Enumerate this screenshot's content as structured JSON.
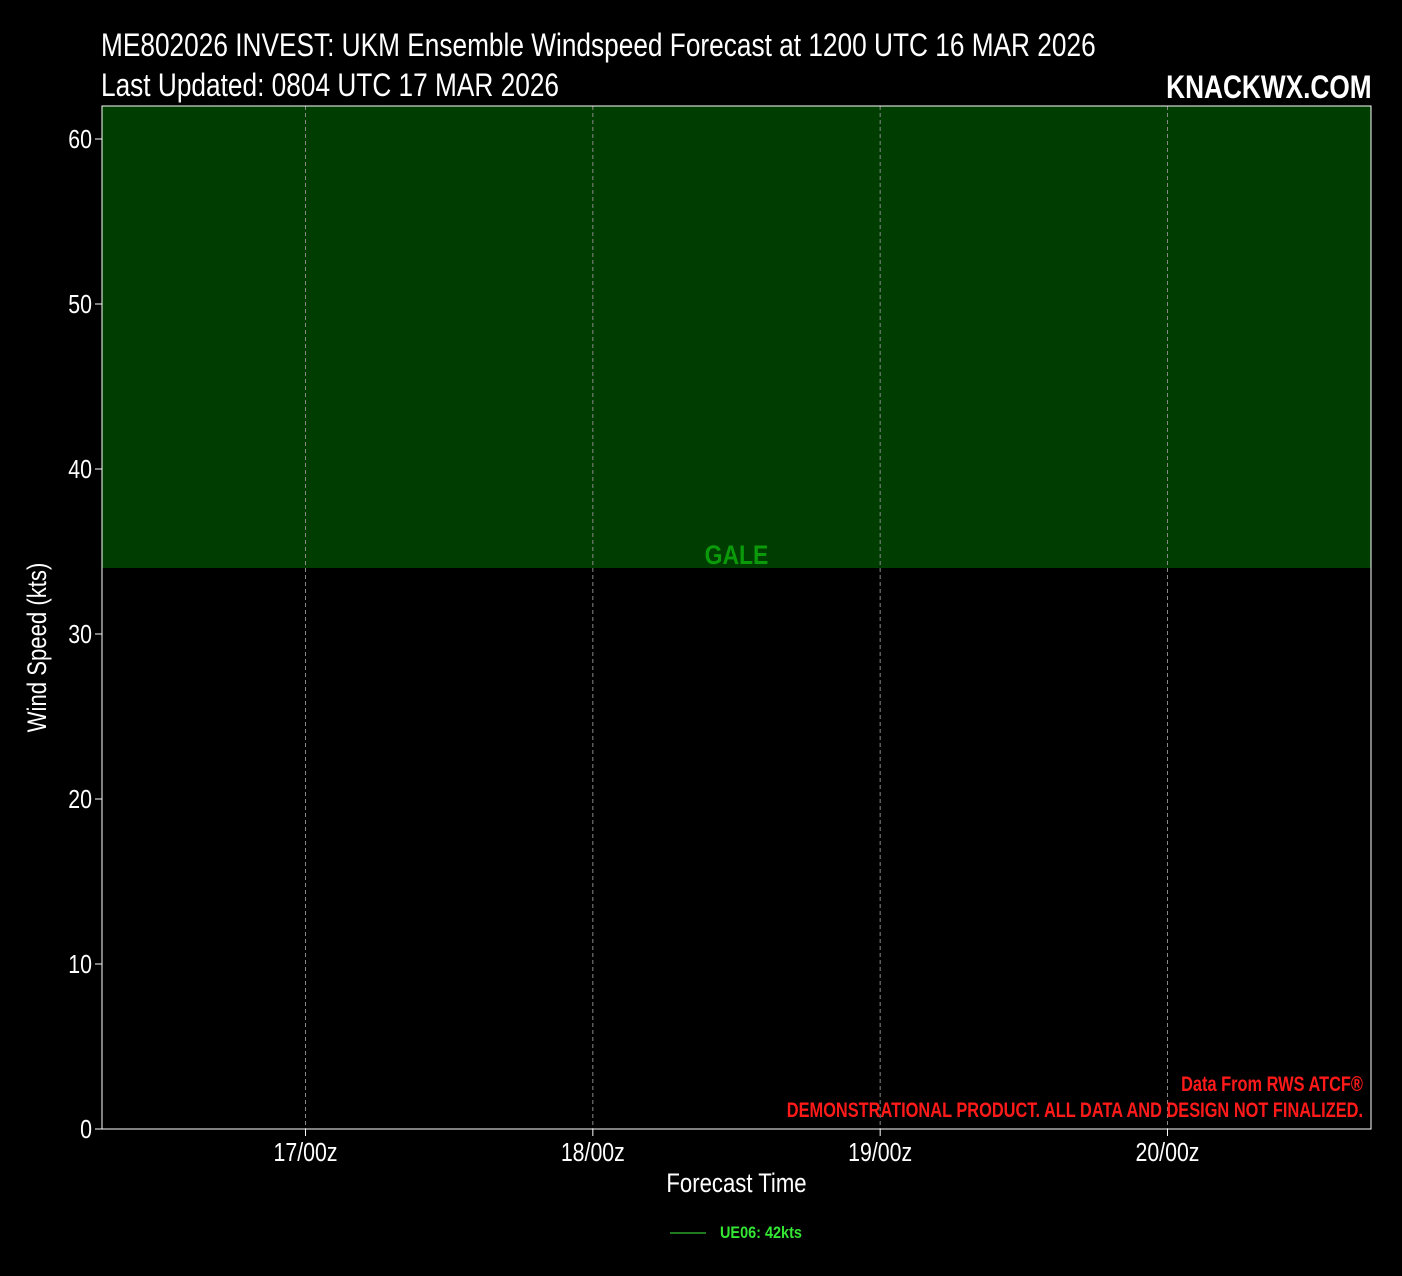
{
  "header": {
    "title_line1": "ME802026 INVEST: UKM Ensemble Windspeed Forecast at 1200 UTC 16 MAR 2026",
    "title_line2": "Last Updated: 0804 UTC 17 MAR 2026",
    "brand": "KNACKWX.COM"
  },
  "chart_data": {
    "type": "line",
    "title": "ME802026 INVEST: UKM Ensemble Windspeed Forecast at 1200 UTC 16 MAR 2026",
    "subtitle": "Last Updated: 0804 UTC 17 MAR 2026",
    "xlabel": "Forecast Time",
    "ylabel": "Wind Speed (kts)",
    "xlim": [
      "2026-03-16T07:00Z",
      "2026-03-20T17:00Z"
    ],
    "ylim": [
      0,
      62
    ],
    "yticks": [
      0,
      10,
      20,
      30,
      40,
      50,
      60
    ],
    "xticks": [
      {
        "value": "2026-03-17T00:00Z",
        "label": "17/00z"
      },
      {
        "value": "2026-03-18T00:00Z",
        "label": "18/00z"
      },
      {
        "value": "2026-03-19T00:00Z",
        "label": "19/00z"
      },
      {
        "value": "2026-03-20T00:00Z",
        "label": "20/00z"
      }
    ],
    "grid": "x-dashed",
    "zones": [
      {
        "label": "GALE",
        "from": 34,
        "to": 62,
        "color": "#003d00",
        "label_color": "#0a9a0a"
      }
    ],
    "series": [
      {
        "name": "UE06: 42kts",
        "color": "#1f7a1f",
        "points": []
      }
    ],
    "legend_position": "bottom-center",
    "annotations": [
      "Data From RWS ATCF®",
      "DEMONSTRATIONAL PRODUCT. ALL DATA AND DESIGN NOT FINALIZED."
    ],
    "colors": {
      "background": "#000000",
      "annotation": "#ff1a1a",
      "legend_text": "#33e633"
    }
  },
  "legend": {
    "label": "UE06: 42kts"
  }
}
